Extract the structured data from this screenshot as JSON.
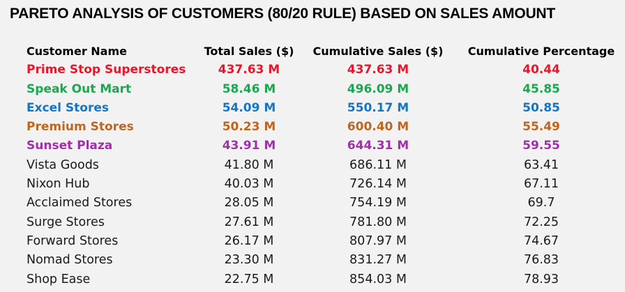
{
  "title": "PARETO ANALYSIS OF CUSTOMERS (80/20 RULE) BASED ON SALES AMOUNT",
  "columns": [
    "Customer Name",
    "Total Sales ($)",
    "Cumulative Sales ($)",
    "Cumulative Percentage"
  ],
  "rows": [
    {
      "name": "Prime Stop Superstores",
      "sales": "437.63 M",
      "cumulative": "437.63 M",
      "percentage": "40.44",
      "color": "#e8162b"
    },
    {
      "name": "Speak Out Mart",
      "sales": "58.46 M",
      "cumulative": "496.09 M",
      "percentage": "45.85",
      "color": "#1aa84f"
    },
    {
      "name": "Excel Stores",
      "sales": "54.09 M",
      "cumulative": "550.17 M",
      "percentage": "50.85",
      "color": "#1575c2"
    },
    {
      "name": "Premium Stores",
      "sales": "50.23 M",
      "cumulative": "600.40 M",
      "percentage": "55.49",
      "color": "#c0651f"
    },
    {
      "name": "Sunset Plaza",
      "sales": "43.91 M",
      "cumulative": "644.31 M",
      "percentage": "59.55",
      "color": "#a12fa9"
    },
    {
      "name": "Vista Goods",
      "sales": "41.80 M",
      "cumulative": "686.11 M",
      "percentage": "63.41",
      "color": ""
    },
    {
      "name": "Nixon Hub",
      "sales": "40.03 M",
      "cumulative": "726.14 M",
      "percentage": "67.11",
      "color": ""
    },
    {
      "name": "Acclaimed Stores",
      "sales": "28.05 M",
      "cumulative": "754.19 M",
      "percentage": "69.7",
      "color": ""
    },
    {
      "name": "Surge Stores",
      "sales": "27.61 M",
      "cumulative": "781.80 M",
      "percentage": "72.25",
      "color": ""
    },
    {
      "name": "Forward Stores",
      "sales": "26.17 M",
      "cumulative": "807.97 M",
      "percentage": "74.67",
      "color": ""
    },
    {
      "name": "Nomad Stores",
      "sales": "23.30 M",
      "cumulative": "831.27 M",
      "percentage": "76.83",
      "color": ""
    },
    {
      "name": "Shop Ease",
      "sales": "22.75 M",
      "cumulative": "854.03 M",
      "percentage": "78.93",
      "color": ""
    }
  ]
}
